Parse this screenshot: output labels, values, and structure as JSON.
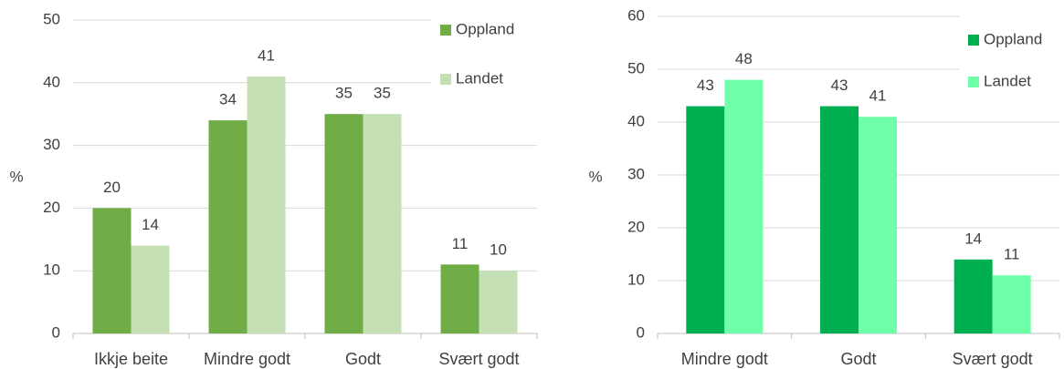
{
  "chart_data": [
    {
      "type": "bar",
      "y_label": "%",
      "categories": [
        "Ikkje beite",
        "Mindre godt",
        "Godt",
        "Svært godt"
      ],
      "series": [
        {
          "name": "Oppland",
          "color": "#70ad47",
          "values": [
            20,
            34,
            35,
            11
          ]
        },
        {
          "name": "Landet",
          "color": "#c5e0b4",
          "values": [
            14,
            41,
            35,
            10
          ]
        }
      ],
      "ylim": [
        0,
        50
      ],
      "yticks": [
        0,
        10,
        20,
        30,
        40,
        50
      ],
      "grid": true,
      "legend": "upper right"
    },
    {
      "type": "bar",
      "y_label": "%",
      "categories": [
        "Mindre godt",
        "Godt",
        "Svært godt"
      ],
      "series": [
        {
          "name": "Oppland",
          "color": "#00b050",
          "values": [
            43,
            43,
            14
          ]
        },
        {
          "name": "Landet",
          "color": "#6fffa8",
          "values": [
            48,
            41,
            11
          ]
        }
      ],
      "ylim": [
        0,
        60
      ],
      "yticks": [
        0,
        10,
        20,
        30,
        40,
        50,
        60
      ],
      "grid": true,
      "legend": "upper right"
    }
  ]
}
